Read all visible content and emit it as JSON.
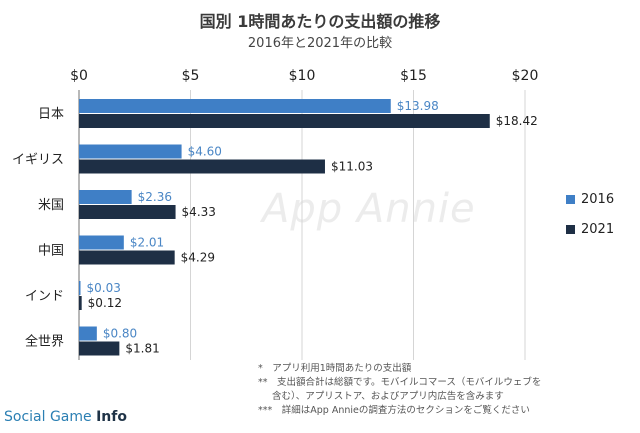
{
  "header": {
    "title": "国別 1時間あたりの支出額の推移",
    "subtitle": "2016年と2021年の比較"
  },
  "chart_data": {
    "type": "bar",
    "orientation": "horizontal",
    "categories": [
      "日本",
      "イギリス",
      "米国",
      "中国",
      "インド",
      "全世界"
    ],
    "series": [
      {
        "name": "2016",
        "values": [
          13.98,
          4.6,
          2.36,
          2.01,
          0.03,
          0.8
        ],
        "labels": [
          "$13.98",
          "$4.60",
          "$2.36",
          "$2.01",
          "$0.03",
          "$0.80"
        ]
      },
      {
        "name": "2021",
        "values": [
          18.42,
          11.03,
          4.33,
          4.29,
          0.12,
          1.81
        ],
        "labels": [
          "$18.42",
          "$11.03",
          "$4.33",
          "$4.29",
          "$0.12",
          "$1.81"
        ]
      }
    ],
    "xlim": [
      0,
      20
    ],
    "x_ticks": [
      "$0",
      "$5",
      "$10",
      "$15",
      "$20"
    ],
    "x_tick_values": [
      0,
      5,
      10,
      15,
      20
    ],
    "grid": true,
    "legend_position": "right",
    "colors": {
      "2016": "#3f7fc6",
      "2021": "#1e2f45",
      "label2016": "#4a86c5",
      "label2021": "#222222",
      "grid": "#d5d5d5"
    }
  },
  "legend": {
    "items": [
      {
        "label": "2016",
        "color": "#3f7fc6"
      },
      {
        "label": "2021",
        "color": "#1e2f45"
      }
    ]
  },
  "notes": {
    "line1": "*　アプリ利用1時間あたりの支出額",
    "line2": "**　支出額合計は総額です。モバイルコマース（モバイルウェブを",
    "line3": "含む）、アプリストア、およびアプリ内広告を含みます",
    "line4": "***　詳細はApp Annieの調査方法のセクションをご覧ください"
  },
  "watermark": "App Annie",
  "source": {
    "part1": "Social Game ",
    "part2": "Info"
  }
}
